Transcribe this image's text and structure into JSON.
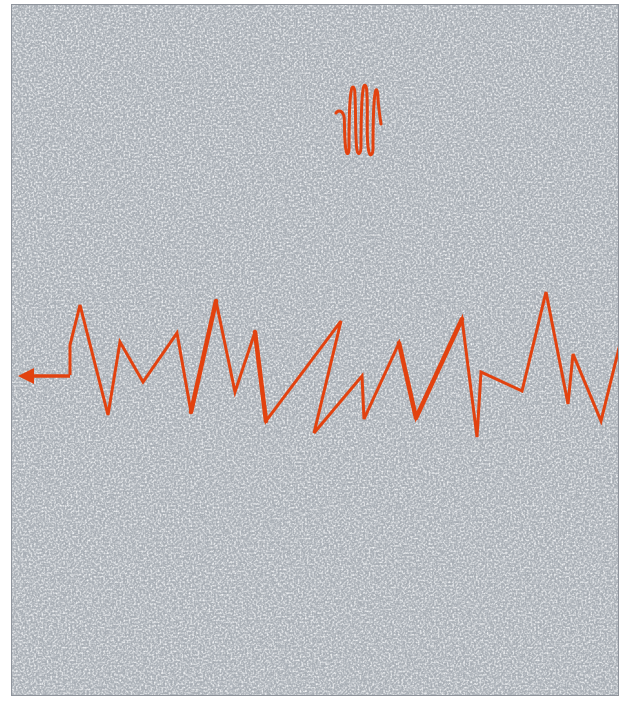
{
  "scene": {
    "background": "#a7adb4",
    "noise_light": "#e6e9ec",
    "noise_dark": "#8b9199",
    "stroke_color": "#e2420f",
    "frame_color": "#8f949c"
  }
}
